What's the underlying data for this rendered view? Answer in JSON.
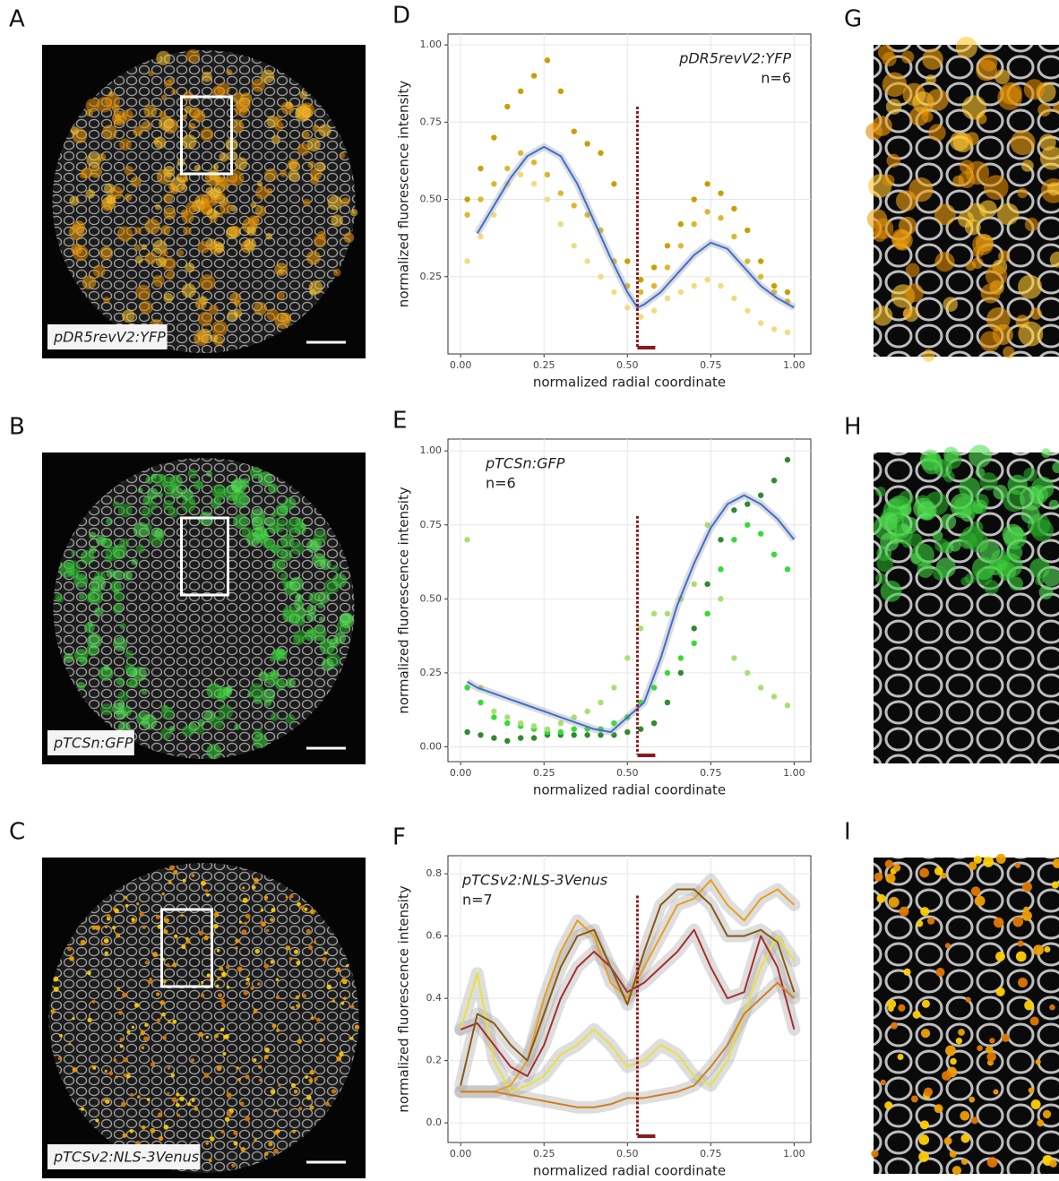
{
  "panels": [
    {
      "letter": "A",
      "caption": "pDR5revV2:YFP",
      "caption_color": "#c8a000",
      "kind": "yfp"
    },
    {
      "letter": "B",
      "caption": "pTCSn:GFP",
      "caption_color": "#2e9a2e",
      "kind": "gfp"
    },
    {
      "letter": "C",
      "caption": "pTCSv2:NLS-3Venus",
      "caption_color": "#c8a000",
      "kind": "venus"
    }
  ],
  "crop_letters": [
    "G",
    "H",
    "I"
  ],
  "chart_data": [
    {
      "type": "scatter",
      "letter": "D",
      "annotations": [
        "pDR5revV2:YFP",
        "n=6"
      ],
      "annotation_color": "#c8a000",
      "xlabel": "normalized radial coordinate",
      "ylabel": "normalized fluorescence intensity",
      "xlim": [
        -0.038,
        1.05
      ],
      "ylim": [
        0,
        1.035
      ],
      "xticks": [
        {
          "value": 0,
          "label": "0.00"
        },
        {
          "value": 0.25,
          "label": "0.25"
        },
        {
          "value": 0.5,
          "label": "0.50"
        },
        {
          "value": 0.75,
          "label": "0.75"
        },
        {
          "value": 1,
          "label": "1.00"
        }
      ],
      "yticks": [
        {
          "value": 0.25,
          "label": "0.25"
        },
        {
          "value": 0.5,
          "label": "0.50"
        },
        {
          "value": 0.75,
          "label": "0.75"
        },
        {
          "value": 1,
          "label": "1.00"
        }
      ],
      "grid": true,
      "reference_line": {
        "x": 0.53,
        "top": 0.8,
        "color": "#8b1a1a"
      },
      "series": [
        {
          "color": "#c8a000",
          "x": [
            0.02,
            0.06,
            0.1,
            0.14,
            0.18,
            0.22,
            0.26,
            0.3,
            0.34,
            0.38,
            0.42,
            0.46,
            0.5,
            0.54,
            0.58,
            0.62,
            0.66,
            0.7,
            0.74,
            0.78,
            0.82,
            0.86,
            0.9,
            0.94,
            0.98
          ],
          "values": [
            0.5,
            0.6,
            0.7,
            0.8,
            0.85,
            0.9,
            0.95,
            0.85,
            0.72,
            0.68,
            0.65,
            0.55,
            0.3,
            0.24,
            0.28,
            0.35,
            0.42,
            0.5,
            0.55,
            0.52,
            0.47,
            0.4,
            0.3,
            0.22,
            0.2
          ]
        },
        {
          "color": "#dcb830",
          "x": [
            0.02,
            0.06,
            0.1,
            0.14,
            0.18,
            0.22,
            0.26,
            0.3,
            0.34,
            0.38,
            0.42,
            0.46,
            0.5,
            0.54,
            0.58,
            0.62,
            0.66,
            0.7,
            0.74,
            0.78,
            0.82,
            0.86,
            0.9,
            0.94,
            0.98
          ],
          "values": [
            0.45,
            0.5,
            0.55,
            0.6,
            0.65,
            0.62,
            0.58,
            0.52,
            0.48,
            0.45,
            0.4,
            0.3,
            0.22,
            0.2,
            0.22,
            0.28,
            0.35,
            0.42,
            0.46,
            0.44,
            0.38,
            0.3,
            0.25,
            0.2,
            0.17
          ]
        },
        {
          "color": "#f0dc80",
          "x": [
            0.02,
            0.06,
            0.1,
            0.14,
            0.18,
            0.22,
            0.26,
            0.3,
            0.34,
            0.38,
            0.42,
            0.46,
            0.5,
            0.54,
            0.58,
            0.62,
            0.66,
            0.7,
            0.74,
            0.78,
            0.82,
            0.86,
            0.9,
            0.94,
            0.98
          ],
          "values": [
            0.3,
            0.38,
            0.45,
            0.55,
            0.58,
            0.55,
            0.5,
            0.42,
            0.35,
            0.3,
            0.25,
            0.2,
            0.15,
            0.12,
            0.14,
            0.18,
            0.2,
            0.22,
            0.24,
            0.22,
            0.18,
            0.14,
            0.1,
            0.08,
            0.07
          ]
        }
      ],
      "fit": {
        "color": "#3b6fd6",
        "x": [
          0.05,
          0.1,
          0.15,
          0.2,
          0.25,
          0.3,
          0.35,
          0.4,
          0.45,
          0.5,
          0.53,
          0.55,
          0.6,
          0.65,
          0.7,
          0.75,
          0.8,
          0.85,
          0.9,
          0.95,
          1.0
        ],
        "values": [
          0.39,
          0.48,
          0.57,
          0.64,
          0.67,
          0.64,
          0.55,
          0.43,
          0.31,
          0.2,
          0.15,
          0.16,
          0.2,
          0.26,
          0.32,
          0.36,
          0.34,
          0.28,
          0.22,
          0.18,
          0.15
        ]
      }
    },
    {
      "type": "scatter",
      "letter": "E",
      "annotations": [
        "pTCSn:GFP",
        "n=6"
      ],
      "annotation_color": "#2e8b2e",
      "xlabel": "normalized radial coordinate",
      "ylabel": "normalized fluorescence intensity",
      "xlim": [
        -0.038,
        1.05
      ],
      "ylim": [
        -0.05,
        1.04
      ],
      "xticks": [
        {
          "value": 0,
          "label": "0.00"
        },
        {
          "value": 0.25,
          "label": "0.25"
        },
        {
          "value": 0.5,
          "label": "0.50"
        },
        {
          "value": 0.75,
          "label": "0.75"
        },
        {
          "value": 1,
          "label": "1.00"
        }
      ],
      "yticks": [
        {
          "value": 0,
          "label": "0.00"
        },
        {
          "value": 0.25,
          "label": "0.25"
        },
        {
          "value": 0.5,
          "label": "0.50"
        },
        {
          "value": 0.75,
          "label": "0.75"
        },
        {
          "value": 1,
          "label": "1.00"
        }
      ],
      "grid": true,
      "reference_line": {
        "x": 0.53,
        "top": 0.78,
        "color": "#8b1a1a"
      },
      "series": [
        {
          "color": "#2e8b2e",
          "x": [
            0.02,
            0.06,
            0.1,
            0.14,
            0.18,
            0.22,
            0.26,
            0.3,
            0.34,
            0.38,
            0.42,
            0.46,
            0.5,
            0.54,
            0.58,
            0.62,
            0.66,
            0.7,
            0.74,
            0.78,
            0.82,
            0.86,
            0.9,
            0.94,
            0.98
          ],
          "values": [
            0.05,
            0.04,
            0.03,
            0.02,
            0.03,
            0.03,
            0.04,
            0.04,
            0.04,
            0.04,
            0.04,
            0.04,
            0.05,
            0.06,
            0.08,
            0.15,
            0.25,
            0.4,
            0.55,
            0.7,
            0.8,
            0.82,
            0.85,
            0.9,
            0.97
          ]
        },
        {
          "color": "#33dd33",
          "x": [
            0.02,
            0.06,
            0.1,
            0.14,
            0.18,
            0.22,
            0.26,
            0.3,
            0.34,
            0.38,
            0.42,
            0.46,
            0.5,
            0.54,
            0.58,
            0.62,
            0.66,
            0.7,
            0.74,
            0.78,
            0.82,
            0.86,
            0.9,
            0.94,
            0.98
          ],
          "values": [
            0.2,
            0.15,
            0.1,
            0.08,
            0.07,
            0.06,
            0.05,
            0.05,
            0.06,
            0.06,
            0.06,
            0.08,
            0.1,
            0.15,
            0.2,
            0.25,
            0.3,
            0.35,
            0.45,
            0.6,
            0.7,
            0.75,
            0.72,
            0.65,
            0.6
          ]
        },
        {
          "color": "#a8e070",
          "x": [
            0.02,
            0.06,
            0.1,
            0.14,
            0.18,
            0.22,
            0.26,
            0.3,
            0.34,
            0.38,
            0.42,
            0.46,
            0.5,
            0.54,
            0.58,
            0.62,
            0.66,
            0.7,
            0.74,
            0.78,
            0.82,
            0.86,
            0.9,
            0.94,
            0.98
          ],
          "values": [
            0.7,
            0.2,
            0.12,
            0.1,
            0.08,
            0.07,
            0.06,
            0.08,
            0.1,
            0.12,
            0.15,
            0.2,
            0.3,
            0.4,
            0.45,
            0.45,
            0.5,
            0.55,
            0.75,
            0.5,
            0.3,
            0.25,
            0.2,
            0.17,
            0.14
          ]
        }
      ],
      "fit": {
        "color": "#3b6fd6",
        "x": [
          0.02,
          0.05,
          0.1,
          0.15,
          0.2,
          0.25,
          0.3,
          0.35,
          0.4,
          0.45,
          0.5,
          0.55,
          0.6,
          0.65,
          0.7,
          0.75,
          0.8,
          0.85,
          0.9,
          0.95,
          1.0
        ],
        "values": [
          0.22,
          0.2,
          0.18,
          0.16,
          0.14,
          0.12,
          0.1,
          0.08,
          0.06,
          0.05,
          0.1,
          0.15,
          0.3,
          0.48,
          0.62,
          0.74,
          0.82,
          0.85,
          0.82,
          0.77,
          0.7
        ]
      }
    },
    {
      "type": "line",
      "letter": "F",
      "annotations": [
        "pTCSv2:NLS-3Venus",
        "n=7"
      ],
      "annotation_color": "#c0a020",
      "xlabel": "normalized radial coordinate",
      "ylabel": "normalized fluorescence intensity",
      "xlim": [
        -0.038,
        1.05
      ],
      "ylim": [
        -0.063,
        0.858
      ],
      "xticks": [
        {
          "value": 0,
          "label": "0.00"
        },
        {
          "value": 0.25,
          "label": "0.25"
        },
        {
          "value": 0.5,
          "label": "0.50"
        },
        {
          "value": 0.75,
          "label": "0.75"
        },
        {
          "value": 1,
          "label": "1.00"
        }
      ],
      "yticks": [
        {
          "value": 0,
          "label": "0.0"
        },
        0.2,
        0.4,
        0.6,
        0.8
      ],
      "grid": true,
      "reference_line": {
        "x": 0.53,
        "top": 0.73,
        "color": "#8b1a1a"
      },
      "x": [
        0,
        0.05,
        0.1,
        0.15,
        0.2,
        0.25,
        0.3,
        0.35,
        0.4,
        0.45,
        0.5,
        0.55,
        0.6,
        0.65,
        0.7,
        0.75,
        0.8,
        0.85,
        0.9,
        0.95,
        1.0
      ],
      "series": [
        {
          "color": "#e8e040",
          "values": [
            0.3,
            0.48,
            0.2,
            0.1,
            0.12,
            0.15,
            0.22,
            0.25,
            0.3,
            0.25,
            0.18,
            0.2,
            0.25,
            0.22,
            0.15,
            0.12,
            0.2,
            0.35,
            0.5,
            0.6,
            0.52
          ]
        },
        {
          "color": "#e8a020",
          "values": [
            0.1,
            0.1,
            0.1,
            0.12,
            0.2,
            0.4,
            0.55,
            0.65,
            0.6,
            0.45,
            0.4,
            0.5,
            0.6,
            0.7,
            0.72,
            0.78,
            0.7,
            0.65,
            0.72,
            0.75,
            0.7
          ]
        },
        {
          "color": "#a83030",
          "values": [
            0.3,
            0.32,
            0.25,
            0.18,
            0.15,
            0.25,
            0.4,
            0.5,
            0.55,
            0.5,
            0.42,
            0.45,
            0.5,
            0.55,
            0.62,
            0.5,
            0.4,
            0.42,
            0.6,
            0.5,
            0.3
          ]
        },
        {
          "color": "#8b5a10",
          "values": [
            0.12,
            0.35,
            0.32,
            0.25,
            0.2,
            0.35,
            0.5,
            0.6,
            0.62,
            0.5,
            0.38,
            0.55,
            0.7,
            0.75,
            0.75,
            0.7,
            0.6,
            0.6,
            0.62,
            0.58,
            0.42
          ]
        },
        {
          "color": "#d08020",
          "values": [
            0.1,
            0.1,
            0.1,
            0.09,
            0.08,
            0.07,
            0.06,
            0.05,
            0.05,
            0.06,
            0.08,
            0.08,
            0.09,
            0.1,
            0.12,
            0.18,
            0.25,
            0.35,
            0.4,
            0.45,
            0.4
          ]
        }
      ]
    }
  ]
}
